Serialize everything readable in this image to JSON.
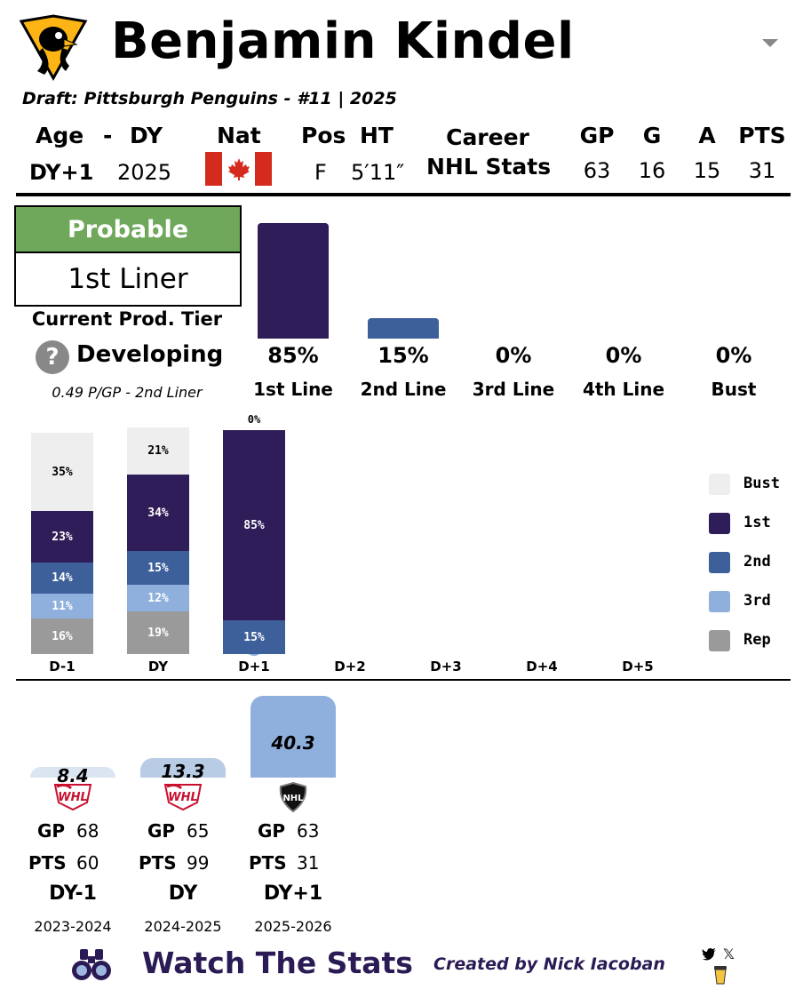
{
  "player": {
    "name": "Benjamin Kindel",
    "draft": "Draft: Pittsburgh Penguins - #11 | 2025",
    "team_logo_icon": "penguins-logo-icon"
  },
  "bio": {
    "age_label": "Age",
    "dash": "-",
    "dy_label": "DY",
    "nat_label": "Nat",
    "pos_label": "Pos",
    "ht_label": "HT",
    "age_value": "DY+1",
    "dy_value": "2025",
    "nat_icon": "canada-flag-icon",
    "pos_value": "F",
    "ht_value": "5′11″"
  },
  "career": {
    "label_line1": "Career",
    "label_line2": "NHL Stats",
    "headers": [
      "GP",
      "G",
      "A",
      "PTS"
    ],
    "values": [
      "63",
      "16",
      "15",
      "31"
    ]
  },
  "projection": {
    "tier_header": "Probable",
    "tier_value": "1st Liner",
    "current_tier_label": "Current Prod. Tier",
    "status_icon": "question-icon",
    "status": "Developing",
    "rate": "0.49 P/GP - 2nd Liner"
  },
  "outcomes": {
    "items": [
      {
        "label": "1st Line",
        "pct": "85%",
        "value": 85,
        "color": "#2e1d58"
      },
      {
        "label": "2nd Line",
        "pct": "15%",
        "value": 15,
        "color": "#3d5f9a"
      },
      {
        "label": "3rd Line",
        "pct": "0%",
        "value": 0,
        "color": "#8fb0dc"
      },
      {
        "label": "4th Line",
        "pct": "0%",
        "value": 0,
        "color": "#9a9a9a"
      },
      {
        "label": "Bust",
        "pct": "0%",
        "value": 0,
        "color": "#eeeeee"
      }
    ]
  },
  "chart_data": {
    "type": "bar",
    "stacked": true,
    "categories": [
      "D-1",
      "DY",
      "D+1",
      "D+2",
      "D+3",
      "D+4",
      "D+5"
    ],
    "series": [
      {
        "name": "Rep",
        "color": "#9a9a9a",
        "values": [
          16,
          19,
          0,
          null,
          null,
          null,
          null
        ],
        "labels": [
          "16%",
          "19%",
          "",
          null,
          null,
          null,
          null
        ]
      },
      {
        "name": "3rd",
        "color": "#8fb0dc",
        "values": [
          11,
          12,
          0,
          null,
          null,
          null,
          null
        ],
        "labels": [
          "11%",
          "12%",
          "0%",
          null,
          null,
          null,
          null
        ]
      },
      {
        "name": "2nd",
        "color": "#3d5f9a",
        "values": [
          14,
          15,
          15,
          null,
          null,
          null,
          null
        ],
        "labels": [
          "14%",
          "15%",
          "15%",
          null,
          null,
          null,
          null
        ]
      },
      {
        "name": "1st",
        "color": "#2e1d58",
        "values": [
          23,
          34,
          85,
          null,
          null,
          null,
          null
        ],
        "labels": [
          "23%",
          "34%",
          "85%",
          null,
          null,
          null,
          null
        ]
      },
      {
        "name": "Bust",
        "color": "#eeeeee",
        "values": [
          35,
          21,
          0,
          null,
          null,
          null,
          null
        ],
        "labels": [
          "35%",
          "21%",
          "0%",
          null,
          null,
          null,
          null
        ]
      }
    ],
    "legend": [
      "Bust",
      "1st",
      "2nd",
      "3rd",
      "Rep"
    ],
    "legend_position": "right",
    "ylim": [
      0,
      100
    ]
  },
  "seasons": [
    {
      "value": "8.4",
      "metric": 8.4,
      "color": "#dbe5f2",
      "league_icon": "whl-logo-icon",
      "gp_label": "GP",
      "gp": "68",
      "pts_label": "PTS",
      "pts": "60",
      "dy": "DY-1",
      "years": "2023-2024"
    },
    {
      "value": "13.3",
      "metric": 13.3,
      "color": "#b9cce6",
      "league_icon": "whl-logo-icon",
      "gp_label": "GP",
      "gp": "65",
      "pts_label": "PTS",
      "pts": "99",
      "dy": "DY",
      "years": "2024-2025"
    },
    {
      "value": "40.3",
      "metric": 40.3,
      "color": "#8fb0dc",
      "league_icon": "nhl-logo-icon",
      "gp_label": "GP",
      "gp": "63",
      "pts_label": "PTS",
      "pts": "31",
      "dy": "DY+1",
      "years": "2025-2026"
    }
  ],
  "footer": {
    "brand": "Watch The Stats",
    "brand_icon": "binoculars-icon",
    "credit": "Created by Nick Iacoban",
    "social_icons": [
      "twitter-icon",
      "x-icon",
      "coffee-icon"
    ]
  }
}
